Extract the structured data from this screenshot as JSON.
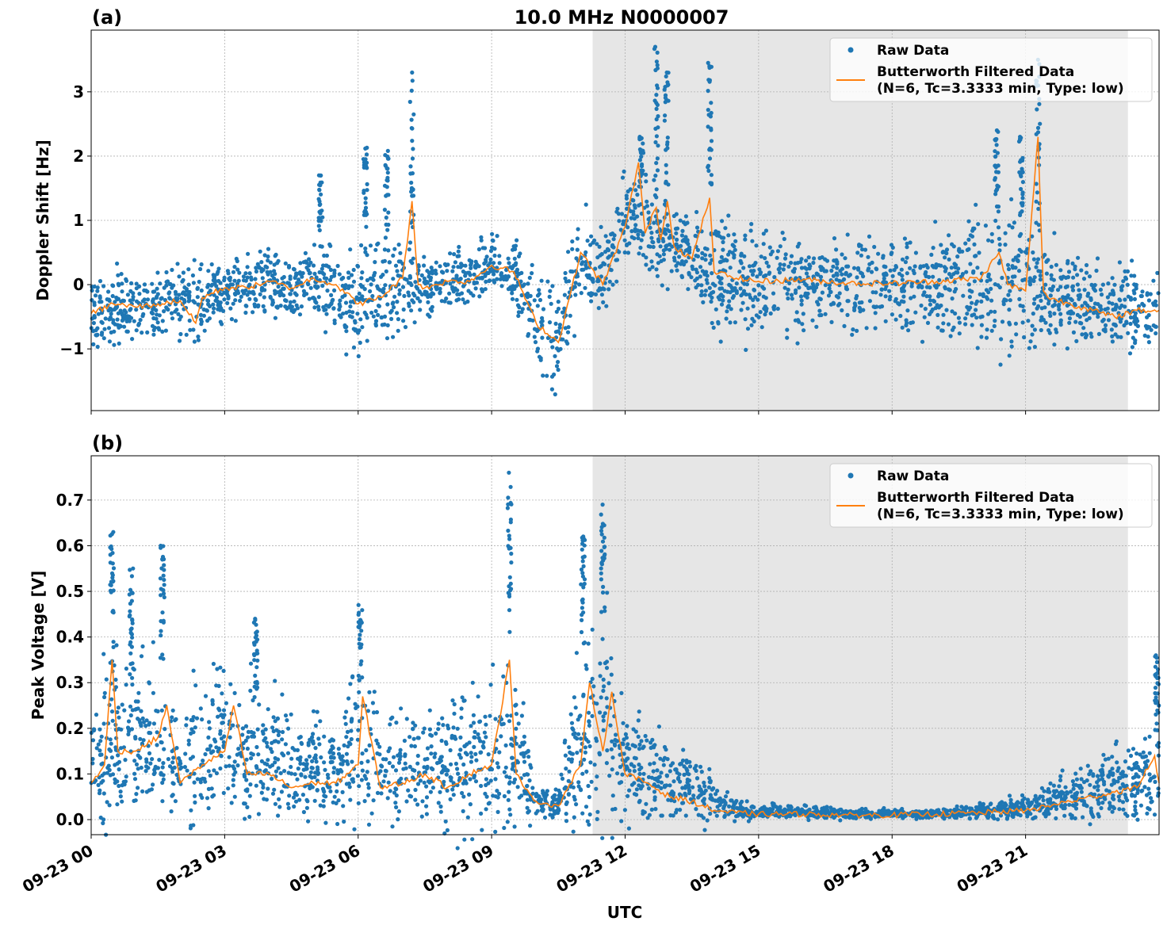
{
  "colors": {
    "raw": "#1f77b4",
    "filtered": "#ff7f0e",
    "shade": "#e6e6e6",
    "grid": "#b0b0b0"
  },
  "chart_data": [
    {
      "type": "scatter",
      "panel_label": "(a)",
      "title": "10.0 MHz N0000007",
      "xlabel": "",
      "ylabel": "Doppler Shift [Hz]",
      "x_unit": "hours UTC on 09-23",
      "xlim": [
        0,
        24
      ],
      "ylim": [
        -1.96,
        3.96
      ],
      "yticks": [
        -1,
        0,
        1,
        2,
        3
      ],
      "ytick_labels": [
        "−1",
        "0",
        "1",
        "2",
        "3"
      ],
      "grid": true,
      "legend_position": "top-right",
      "legend": [
        "Raw Data",
        "Butterworth Filtered Data",
        "(N=6, Tc=3.3333 min, Type: low)"
      ],
      "shaded_x_range": [
        11.27,
        23.3
      ],
      "raw_envelope": {
        "t": [
          0,
          0.5,
          1,
          1.5,
          2,
          2.5,
          3,
          3.5,
          4,
          4.5,
          5,
          5.5,
          6,
          6.5,
          7,
          7.5,
          8,
          8.5,
          9,
          9.5,
          10,
          10.5,
          11,
          11.5,
          12,
          12.5,
          13,
          13.5,
          14,
          14.5,
          15,
          15.5,
          16,
          16.5,
          17,
          17.5,
          18,
          18.5,
          19,
          19.5,
          20,
          20.5,
          21,
          21.5,
          22,
          22.5,
          23,
          23.5,
          24
        ],
        "low": [
          -0.9,
          -0.8,
          -0.85,
          -0.8,
          -0.7,
          -0.7,
          -0.4,
          -0.45,
          -0.35,
          -0.45,
          -0.4,
          -0.6,
          -1.0,
          -0.8,
          -0.5,
          -0.4,
          -0.3,
          -0.25,
          0.0,
          -0.2,
          -1.2,
          -1.5,
          -0.1,
          -0.4,
          0.5,
          0.4,
          0.2,
          0.1,
          -0.6,
          -0.6,
          -0.6,
          -0.55,
          -0.55,
          -0.55,
          -0.55,
          -0.5,
          -0.5,
          -0.55,
          -0.6,
          -0.6,
          -0.7,
          -0.7,
          -0.75,
          -0.7,
          -0.75,
          -0.85,
          -0.9,
          -0.9,
          -0.8
        ],
        "high": [
          0.0,
          0.1,
          0.05,
          0.1,
          0.15,
          0.2,
          0.25,
          0.35,
          0.4,
          0.3,
          0.5,
          0.4,
          0.3,
          0.4,
          0.5,
          0.3,
          0.35,
          0.4,
          0.7,
          0.6,
          0.0,
          -0.2,
          1.0,
          0.6,
          1.5,
          1.4,
          1.1,
          0.9,
          0.9,
          0.7,
          0.6,
          0.6,
          0.6,
          0.55,
          0.55,
          0.5,
          0.55,
          0.6,
          0.7,
          0.8,
          0.9,
          1.0,
          0.7,
          0.5,
          0.4,
          0.3,
          0.1,
          0.1,
          0.1
        ]
      },
      "raw_spikes": [
        {
          "t": 5.16,
          "high": 1.7
        },
        {
          "t": 6.16,
          "high": 2.13
        },
        {
          "t": 6.64,
          "high": 2.08
        },
        {
          "t": 7.21,
          "high": 3.3
        },
        {
          "t": 12.37,
          "high": 2.3
        },
        {
          "t": 12.7,
          "high": 3.7
        },
        {
          "t": 12.93,
          "high": 3.3
        },
        {
          "t": 13.9,
          "high": 3.45
        },
        {
          "t": 20.35,
          "high": 2.4
        },
        {
          "t": 20.9,
          "high": 2.3
        },
        {
          "t": 21.28,
          "high": 3.5
        }
      ],
      "filtered": [
        [
          0,
          -0.45
        ],
        [
          0.5,
          -0.3
        ],
        [
          1,
          -0.35
        ],
        [
          1.5,
          -0.3
        ],
        [
          2,
          -0.25
        ],
        [
          2.35,
          -0.6
        ],
        [
          2.5,
          -0.2
        ],
        [
          3,
          -0.05
        ],
        [
          3.5,
          -0.05
        ],
        [
          4,
          0.05
        ],
        [
          4.5,
          -0.05
        ],
        [
          5,
          0.1
        ],
        [
          5.5,
          0.0
        ],
        [
          6,
          -0.3
        ],
        [
          6.5,
          -0.2
        ],
        [
          7,
          0.1
        ],
        [
          7.21,
          1.3
        ],
        [
          7.35,
          0.0
        ],
        [
          7.5,
          -0.05
        ],
        [
          8,
          0.05
        ],
        [
          8.5,
          0.05
        ],
        [
          9,
          0.3
        ],
        [
          9.5,
          0.2
        ],
        [
          10,
          -0.6
        ],
        [
          10.5,
          -0.9
        ],
        [
          11,
          0.5
        ],
        [
          11.5,
          0.0
        ],
        [
          12,
          0.9
        ],
        [
          12.3,
          1.9
        ],
        [
          12.45,
          0.8
        ],
        [
          12.7,
          1.2
        ],
        [
          12.8,
          0.7
        ],
        [
          12.95,
          1.3
        ],
        [
          13.1,
          0.6
        ],
        [
          13.5,
          0.4
        ],
        [
          13.9,
          1.35
        ],
        [
          14,
          0.2
        ],
        [
          14.5,
          0.1
        ],
        [
          15,
          0.05
        ],
        [
          16,
          0.08
        ],
        [
          17,
          0.02
        ],
        [
          18,
          0.02
        ],
        [
          19,
          0.05
        ],
        [
          20,
          0.1
        ],
        [
          20.4,
          0.5
        ],
        [
          20.6,
          0.0
        ],
        [
          21,
          -0.1
        ],
        [
          21.28,
          2.3
        ],
        [
          21.4,
          -0.1
        ],
        [
          21.5,
          -0.2
        ],
        [
          22,
          -0.3
        ],
        [
          22.5,
          -0.4
        ],
        [
          23,
          -0.5
        ],
        [
          23.5,
          -0.4
        ],
        [
          24,
          -0.4
        ]
      ]
    },
    {
      "type": "scatter",
      "panel_label": "(b)",
      "xlabel": "UTC",
      "ylabel": "Peak Voltage [V]",
      "x_unit": "hours UTC on 09-23",
      "xlim": [
        0,
        24
      ],
      "ylim": [
        -0.033,
        0.797
      ],
      "yticks": [
        0,
        0.1,
        0.2,
        0.3,
        0.4,
        0.5,
        0.6,
        0.7
      ],
      "ytick_labels": [
        "0.0",
        "0.1",
        "0.2",
        "0.3",
        "0.4",
        "0.5",
        "0.6",
        "0.7"
      ],
      "xticks": [
        0,
        3,
        6,
        9,
        12,
        15,
        18,
        21
      ],
      "xtick_labels": [
        "09-23 00",
        "09-23 03",
        "09-23 06",
        "09-23 09",
        "09-23 12",
        "09-23 15",
        "09-23 18",
        "09-23 21"
      ],
      "grid": true,
      "legend_position": "top-right",
      "legend": [
        "Raw Data",
        "Butterworth Filtered Data",
        "(N=6, Tc=3.3333 min, Type: low)"
      ],
      "shaded_x_range": [
        11.27,
        23.3
      ],
      "raw_envelope": {
        "t": [
          0,
          0.5,
          1,
          1.5,
          2,
          2.5,
          3,
          3.5,
          4,
          4.5,
          5,
          5.5,
          6,
          6.5,
          7,
          7.5,
          8,
          8.5,
          9,
          9.5,
          10,
          10.5,
          11,
          11.5,
          12,
          12.5,
          13,
          13.5,
          14,
          14.5,
          15,
          15.5,
          16,
          16.5,
          17,
          17.5,
          18,
          18.5,
          19,
          19.5,
          20,
          20.5,
          21,
          21.5,
          22,
          22.5,
          23,
          23.5,
          24
        ],
        "low": [
          0.03,
          0.05,
          0.05,
          0.05,
          0.03,
          0.03,
          0.03,
          0.03,
          0.03,
          0.02,
          0.02,
          0.02,
          0.03,
          0.02,
          0.02,
          0.03,
          0.02,
          0.02,
          0.03,
          0.03,
          0.02,
          0.01,
          0.03,
          0.04,
          0.03,
          0.02,
          0.02,
          0.01,
          0.01,
          0.005,
          0.005,
          0.005,
          0.005,
          0.005,
          0.005,
          0.005,
          0.005,
          0.005,
          0.005,
          0.005,
          0.005,
          0.005,
          0.01,
          0.01,
          0.01,
          0.01,
          0.02,
          0.02,
          0.02
        ],
        "high": [
          0.2,
          0.35,
          0.3,
          0.3,
          0.2,
          0.3,
          0.3,
          0.25,
          0.25,
          0.2,
          0.2,
          0.18,
          0.3,
          0.2,
          0.2,
          0.22,
          0.22,
          0.25,
          0.28,
          0.3,
          0.06,
          0.06,
          0.35,
          0.4,
          0.2,
          0.2,
          0.15,
          0.12,
          0.08,
          0.04,
          0.03,
          0.03,
          0.03,
          0.025,
          0.02,
          0.02,
          0.02,
          0.02,
          0.02,
          0.025,
          0.03,
          0.04,
          0.05,
          0.07,
          0.09,
          0.12,
          0.14,
          0.14,
          0.2
        ]
      },
      "raw_spikes": [
        {
          "t": 0.47,
          "high": 0.63
        },
        {
          "t": 0.9,
          "high": 0.55
        },
        {
          "t": 1.6,
          "high": 0.6
        },
        {
          "t": 3.7,
          "high": 0.44
        },
        {
          "t": 6.05,
          "high": 0.47
        },
        {
          "t": 9.4,
          "high": 0.76
        },
        {
          "t": 11.05,
          "high": 0.62
        },
        {
          "t": 11.5,
          "high": 0.69
        },
        {
          "t": 23.95,
          "high": 0.36
        }
      ],
      "filtered": [
        [
          0,
          0.08
        ],
        [
          0.3,
          0.12
        ],
        [
          0.47,
          0.35
        ],
        [
          0.6,
          0.15
        ],
        [
          1,
          0.15
        ],
        [
          1.5,
          0.18
        ],
        [
          1.7,
          0.25
        ],
        [
          2,
          0.08
        ],
        [
          2.5,
          0.12
        ],
        [
          3,
          0.15
        ],
        [
          3.2,
          0.25
        ],
        [
          3.5,
          0.1
        ],
        [
          4,
          0.1
        ],
        [
          4.5,
          0.07
        ],
        [
          5,
          0.08
        ],
        [
          5.5,
          0.08
        ],
        [
          6,
          0.12
        ],
        [
          6.1,
          0.27
        ],
        [
          6.5,
          0.07
        ],
        [
          7,
          0.08
        ],
        [
          7.5,
          0.1
        ],
        [
          8,
          0.07
        ],
        [
          8.5,
          0.1
        ],
        [
          9,
          0.12
        ],
        [
          9.4,
          0.35
        ],
        [
          9.55,
          0.1
        ],
        [
          10,
          0.04
        ],
        [
          10.5,
          0.03
        ],
        [
          11,
          0.12
        ],
        [
          11.2,
          0.3
        ],
        [
          11.5,
          0.15
        ],
        [
          11.7,
          0.28
        ],
        [
          12,
          0.1
        ],
        [
          12.5,
          0.08
        ],
        [
          13,
          0.05
        ],
        [
          13.5,
          0.04
        ],
        [
          14,
          0.02
        ],
        [
          14.5,
          0.015
        ],
        [
          15,
          0.012
        ],
        [
          16,
          0.012
        ],
        [
          17,
          0.01
        ],
        [
          18,
          0.01
        ],
        [
          19,
          0.012
        ],
        [
          20,
          0.015
        ],
        [
          21,
          0.02
        ],
        [
          21.5,
          0.03
        ],
        [
          22,
          0.04
        ],
        [
          22.5,
          0.05
        ],
        [
          23,
          0.06
        ],
        [
          23.5,
          0.07
        ],
        [
          23.9,
          0.14
        ],
        [
          24,
          0.08
        ]
      ]
    }
  ]
}
